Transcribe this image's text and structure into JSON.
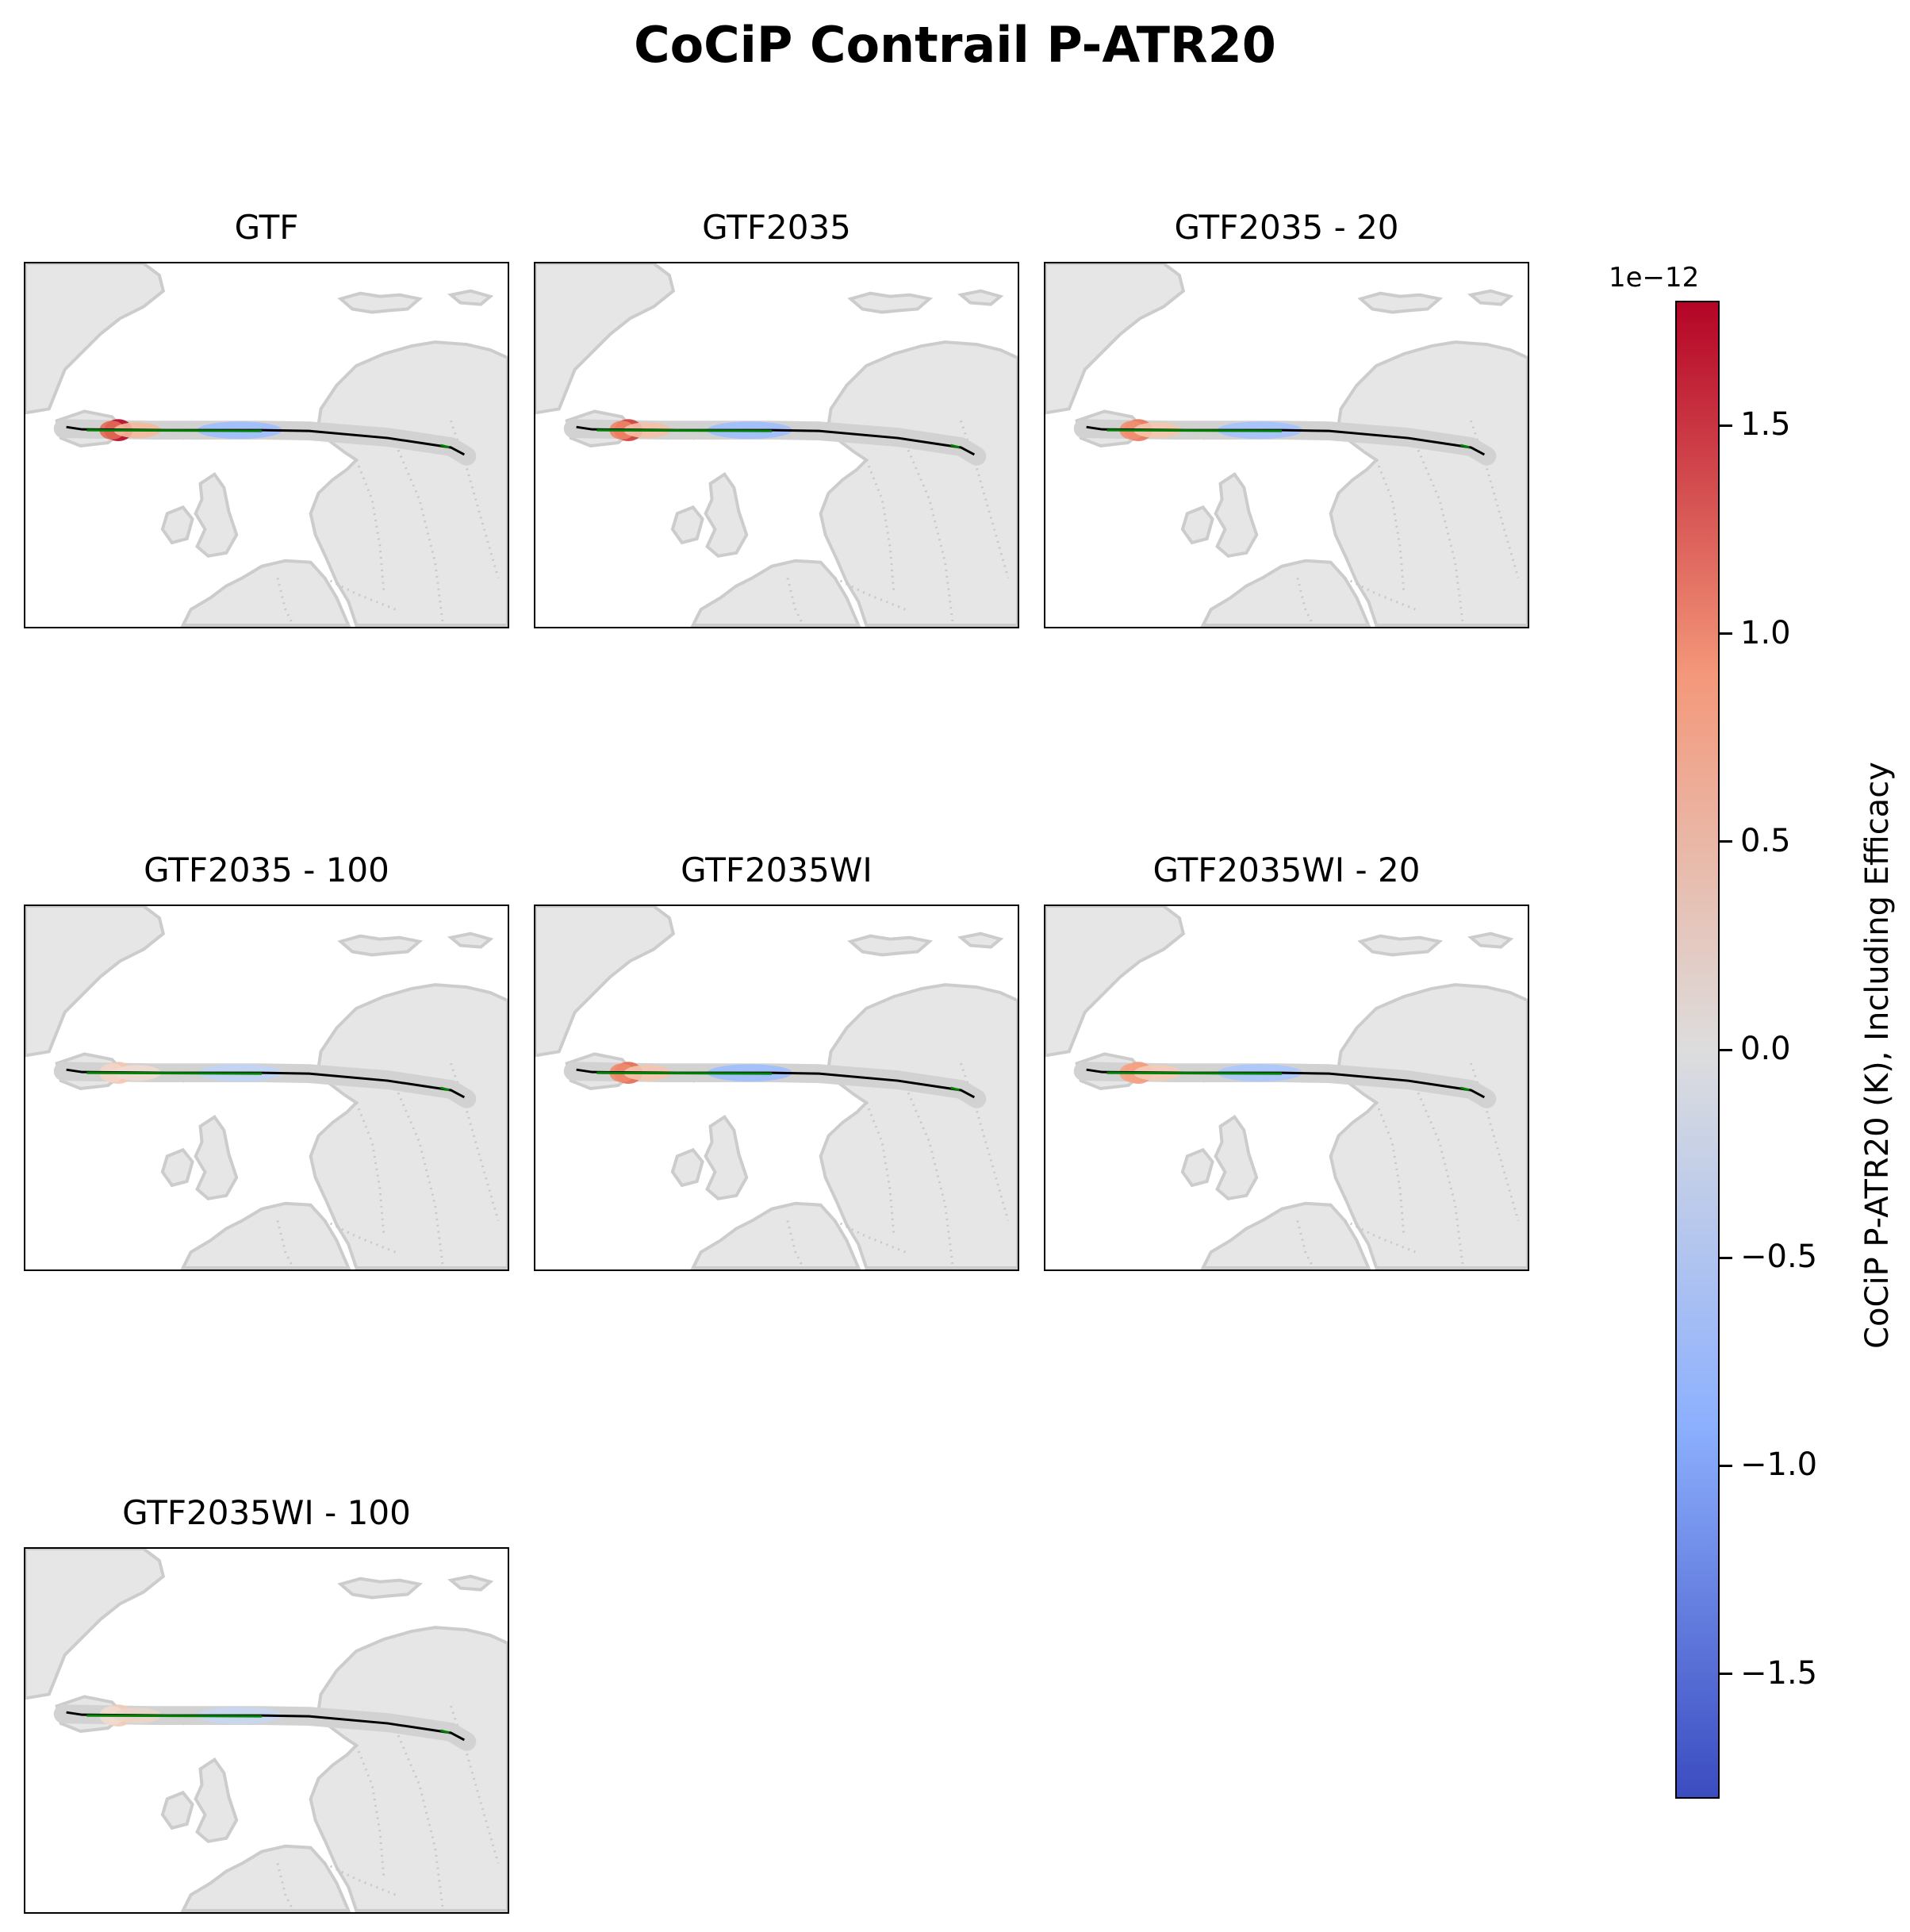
{
  "figure": {
    "title": "CoCiP Contrail P-ATR20"
  },
  "chart_data": [
    {
      "type": "map",
      "title": "GTF",
      "region": "North Atlantic and Northern Europe",
      "coloring": "CoCiP P-ATR20 along flight track",
      "track_segments": [
        {
          "color": "#b40426",
          "value": 1.7e-12
        },
        {
          "color": "#e36c55",
          "value": 1.1e-12
        },
        {
          "color": "#f5b99c",
          "value": 7e-13
        },
        {
          "color": "#9ebeff",
          "value": -7e-13
        }
      ]
    },
    {
      "type": "map",
      "title": "GTF2035",
      "region": "North Atlantic and Northern Europe",
      "coloring": "CoCiP P-ATR20 along flight track",
      "track_segments": [
        {
          "color": "#cc3d36",
          "value": 1.5e-12
        },
        {
          "color": "#ee8468",
          "value": 1e-12
        },
        {
          "color": "#f5c0a7",
          "value": 6e-13
        },
        {
          "color": "#9ebeff",
          "value": -7e-13
        }
      ]
    },
    {
      "type": "map",
      "title": "GTF2035 - 20",
      "region": "North Atlantic and Northern Europe",
      "coloring": "CoCiP P-ATR20 along flight track",
      "track_segments": [
        {
          "color": "#e8765c",
          "value": 1.1e-12
        },
        {
          "color": "#f29072",
          "value": 9e-13
        },
        {
          "color": "#f6c6ad",
          "value": 5e-13
        },
        {
          "color": "#a3c2fe",
          "value": -6e-13
        }
      ]
    },
    {
      "type": "map",
      "title": "GTF2035 - 100",
      "region": "North Atlantic and Northern Europe",
      "coloring": "CoCiP P-ATR20 along flight track",
      "track_segments": [
        {
          "color": "#f3c7b1",
          "value": 4e-13
        },
        {
          "color": "#f2d6c8",
          "value": 3e-13
        },
        {
          "color": "#f0dcd2",
          "value": 2e-13
        },
        {
          "color": "#c0d4f5",
          "value": -3e-13
        }
      ]
    },
    {
      "type": "map",
      "title": "GTF2035WI",
      "region": "North Atlantic and Northern Europe",
      "coloring": "CoCiP P-ATR20 along flight track",
      "track_segments": [
        {
          "color": "#e36c55",
          "value": 1.2e-12
        },
        {
          "color": "#f08b6e",
          "value": 9e-13
        },
        {
          "color": "#f5c4ac",
          "value": 5e-13
        },
        {
          "color": "#9ebeff",
          "value": -7e-13
        }
      ]
    },
    {
      "type": "map",
      "title": "GTF2035WI - 20",
      "region": "North Atlantic and Northern Europe",
      "coloring": "CoCiP P-ATR20 along flight track",
      "track_segments": [
        {
          "color": "#f39a7b",
          "value": 8e-13
        },
        {
          "color": "#f4a385",
          "value": 7.5e-13
        },
        {
          "color": "#f5cbb5",
          "value": 4.5e-13
        },
        {
          "color": "#a9c6fd",
          "value": -5.5e-13
        }
      ]
    },
    {
      "type": "map",
      "title": "GTF2035WI - 100",
      "region": "North Atlantic and Northern Europe",
      "coloring": "CoCiP P-ATR20 along flight track",
      "track_segments": [
        {
          "color": "#f2cbb7",
          "value": 3.5e-13
        },
        {
          "color": "#efdcd1",
          "value": 2e-13
        },
        {
          "color": "#ead5c9",
          "value": 1.5e-13
        },
        {
          "color": "#c6d6f1",
          "value": -2.5e-13
        }
      ]
    }
  ],
  "colorbar": {
    "label": "CoCiP P-ATR20 (K), Including Efficacy",
    "scale_label": "1e−12",
    "colormap": "coolwarm",
    "range": [
      -1.8,
      1.8
    ],
    "ticks": [
      {
        "value": 1.5,
        "label": "1.5"
      },
      {
        "value": 1.0,
        "label": "1.0"
      },
      {
        "value": 0.5,
        "label": "0.5"
      },
      {
        "value": 0.0,
        "label": "0.0"
      },
      {
        "value": -0.5,
        "label": "−0.5"
      },
      {
        "value": -1.0,
        "label": "−1.0"
      },
      {
        "value": -1.5,
        "label": "−1.5"
      }
    ]
  },
  "colors": {
    "land": "#e6e6e6",
    "coastline": "#cccccc",
    "track_base": "#000000",
    "track_overlay": "#008000",
    "cmap_low": "#3b4cc0",
    "cmap_mid": "#dddddd",
    "cmap_high": "#b40426"
  }
}
